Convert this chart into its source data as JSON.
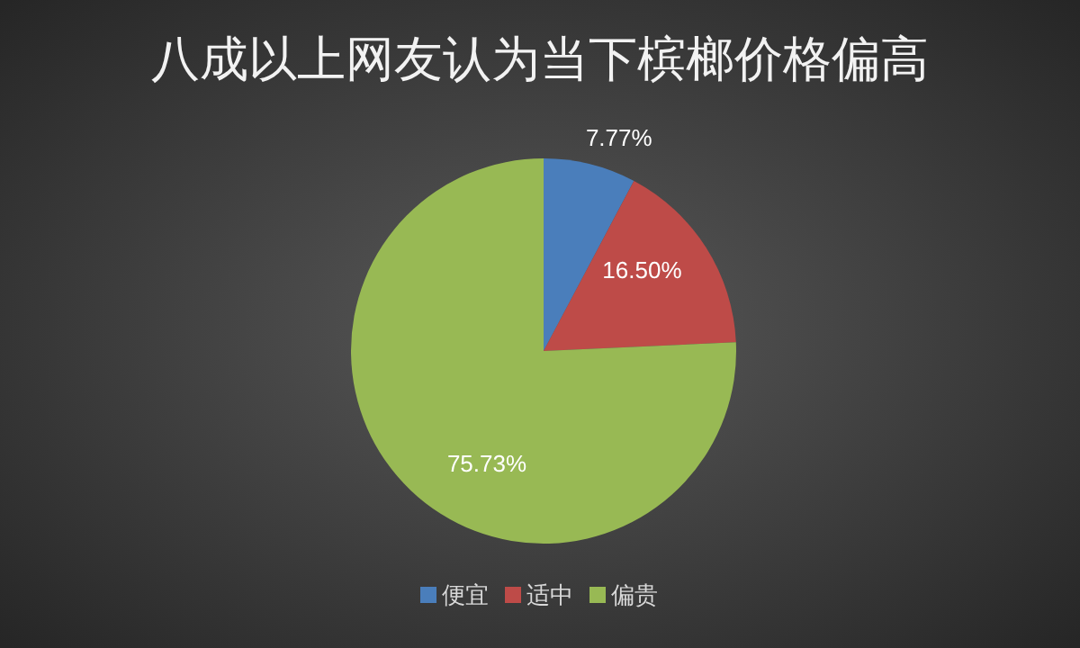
{
  "chart_data": {
    "type": "pie",
    "title": "八成以上网友认为当下槟榔价格偏高",
    "categories": [
      "便宜",
      "适中",
      "偏贵"
    ],
    "values": [
      7.77,
      16.5,
      75.73
    ],
    "colors": [
      "#4a7ebb",
      "#be4b48",
      "#98b954"
    ],
    "value_labels": [
      "7.77%",
      "16.50%",
      "75.73%"
    ],
    "legend": "bottom"
  }
}
